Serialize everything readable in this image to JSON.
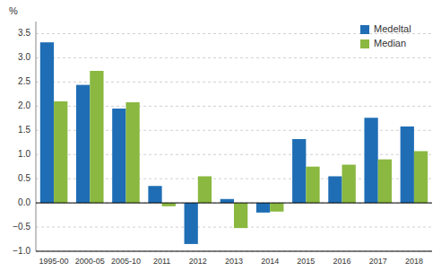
{
  "chart_data": {
    "type": "bar",
    "y_label": "%",
    "categories": [
      "1995-00",
      "2000-05",
      "2005-10",
      "2011",
      "2012",
      "2013",
      "2014",
      "2015",
      "2016",
      "2017",
      "2018"
    ],
    "series": [
      {
        "name": "Medeltal",
        "color": "#1f6eb5",
        "values": [
          3.32,
          2.44,
          1.95,
          0.35,
          -0.85,
          0.08,
          -0.2,
          1.32,
          0.55,
          1.76,
          1.58
        ]
      },
      {
        "name": "Median",
        "color": "#8ab840",
        "values": [
          2.1,
          2.73,
          2.08,
          -0.07,
          0.55,
          -0.52,
          -0.18,
          0.75,
          0.79,
          0.9,
          1.07
        ]
      }
    ],
    "ylim": [
      -1.0,
      3.75
    ],
    "yticks": [
      {
        "value": -1.0,
        "label": "−1.0"
      },
      {
        "value": -0.5,
        "label": "−0.5"
      },
      {
        "value": 0.0,
        "label": "0.0"
      },
      0.5,
      {
        "value": 1.0,
        "label": "1.0"
      },
      1.5,
      {
        "value": 2.0,
        "label": "2.0"
      },
      2.5,
      {
        "value": 3.0,
        "label": "3.0"
      },
      3.5
    ],
    "grid": true,
    "legend": "upper right"
  }
}
